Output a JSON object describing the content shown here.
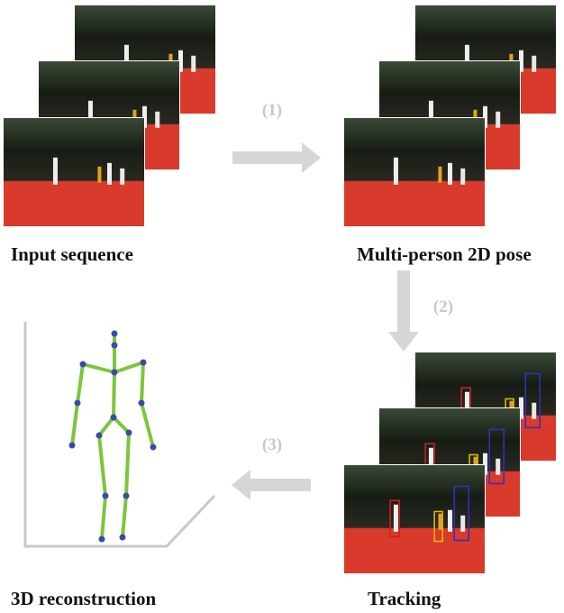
{
  "stages": [
    {
      "label": "Input sequence"
    },
    {
      "label": "Multi-person 2D pose"
    },
    {
      "label": "Tracking"
    },
    {
      "label": "3D reconstruction"
    }
  ],
  "steps": [
    "(1)",
    "(2)",
    "(3)"
  ]
}
